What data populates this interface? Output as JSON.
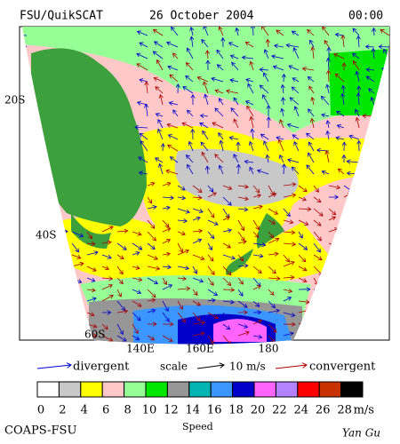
{
  "header": {
    "title": "FSU/QuikSCAT",
    "date": "26 October 2004",
    "time": "00:00"
  },
  "map": {
    "lat_labels": [
      "20S",
      "40S",
      "60S"
    ],
    "lon_labels": [
      "140E",
      "160E",
      "180"
    ]
  },
  "legend": {
    "divergent": "divergent",
    "scale": "scale",
    "scale_value": "10 m/s",
    "convergent": "convergent",
    "divergent_color": "#0000cc",
    "convergent_color": "#aa0000"
  },
  "colorbar": {
    "ticks": [
      0,
      2,
      4,
      6,
      8,
      10,
      12,
      14,
      16,
      18,
      20,
      22,
      24,
      26,
      28
    ],
    "unit": "m/s",
    "colors": [
      "#ffffff",
      "#c8c8c8",
      "#ffff00",
      "#ffc8c8",
      "#96ff96",
      "#00e600",
      "#969696",
      "#00b4b4",
      "#3c96ff",
      "#0000c8",
      "#ff64ff",
      "#b482ff",
      "#ff0000",
      "#c83200",
      "#000000"
    ],
    "label": "Speed"
  },
  "footer": {
    "left": "COAPS-FSU",
    "right": "Yan Gu"
  }
}
